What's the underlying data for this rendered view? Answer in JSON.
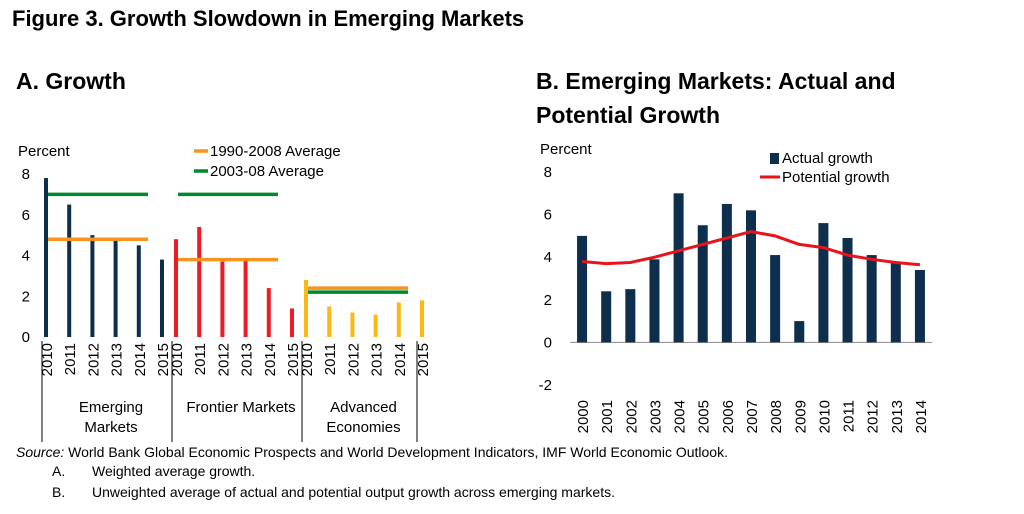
{
  "figure_title": "Figure 3. Growth Slowdown in Emerging Markets",
  "panel_a_title": "A. Growth",
  "panel_b_title_line1": "B. Emerging Markets: Actual and",
  "panel_b_title_line2": "Potential Growth",
  "source_label": "Source:",
  "source_text": " World Bank Global Economic Prospects and World Development Indicators, IMF World Economic Outlook.",
  "notes": [
    {
      "label": "A.",
      "text": "Weighted average growth."
    },
    {
      "label": "B.",
      "text": "Unweighted average of actual and potential output growth across emerging markets."
    }
  ],
  "chart_data": [
    {
      "type": "bar",
      "ylabel": "Percent",
      "ylim": [
        0,
        8
      ],
      "yticks": [
        0,
        2,
        4,
        6,
        8
      ],
      "grid": false,
      "legend_position": "top-center",
      "legend": [
        {
          "name": "1990-2008 Average",
          "color": "#F7941D"
        },
        {
          "name": "2003-08 Average",
          "color": "#008A2E"
        }
      ],
      "groups": [
        {
          "name": "Emerging Markets",
          "name_lines": [
            "Emerging",
            "Markets"
          ],
          "color": "#0D2E4C",
          "categories": [
            "2010",
            "2011",
            "2012",
            "2013",
            "2014",
            "2015"
          ],
          "values": [
            7.8,
            6.5,
            5.0,
            4.8,
            4.5,
            3.8
          ],
          "avg_1990_2008": 4.8,
          "avg_2003_08": 7.0
        },
        {
          "name": "Frontier Markets",
          "name_lines": [
            "Frontier Markets"
          ],
          "color": "#ED1C24",
          "categories": [
            "2010",
            "2011",
            "2012",
            "2013",
            "2014",
            "2015"
          ],
          "values": [
            4.8,
            5.4,
            3.7,
            3.8,
            2.4,
            1.4
          ],
          "avg_1990_2008": 3.8,
          "avg_2003_08": 7.0
        },
        {
          "name": "Advanced Economies",
          "name_lines": [
            "Advanced",
            "Economies"
          ],
          "color": "#FDB913",
          "categories": [
            "2010",
            "2011",
            "2012",
            "2013",
            "2014",
            "2015"
          ],
          "values": [
            2.8,
            1.5,
            1.2,
            1.1,
            1.7,
            1.8
          ],
          "avg_1990_2008": 2.4,
          "avg_2003_08": 2.2
        }
      ]
    },
    {
      "type": "bar",
      "ylabel": "Percent",
      "ylim": [
        -2,
        8
      ],
      "yticks": [
        -2,
        0,
        2,
        4,
        6,
        8
      ],
      "grid": false,
      "legend_position": "top-right",
      "categories": [
        "2000",
        "2001",
        "2002",
        "2003",
        "2004",
        "2005",
        "2006",
        "2007",
        "2008",
        "2009",
        "2010",
        "2011",
        "2012",
        "2013",
        "2014"
      ],
      "series": [
        {
          "name": "Actual growth",
          "type": "bar",
          "color": "#0D2E4C",
          "values": [
            5.0,
            2.4,
            2.5,
            3.9,
            7.0,
            5.5,
            6.5,
            6.2,
            4.1,
            1.0,
            5.6,
            4.9,
            4.1,
            3.8,
            3.4
          ]
        },
        {
          "name": "Potential growth",
          "type": "line",
          "color": "#E8141B",
          "values": [
            3.8,
            3.7,
            3.75,
            4.0,
            4.3,
            4.6,
            4.9,
            5.2,
            5.0,
            4.6,
            4.45,
            4.1,
            3.9,
            3.75,
            3.65
          ]
        }
      ]
    }
  ]
}
